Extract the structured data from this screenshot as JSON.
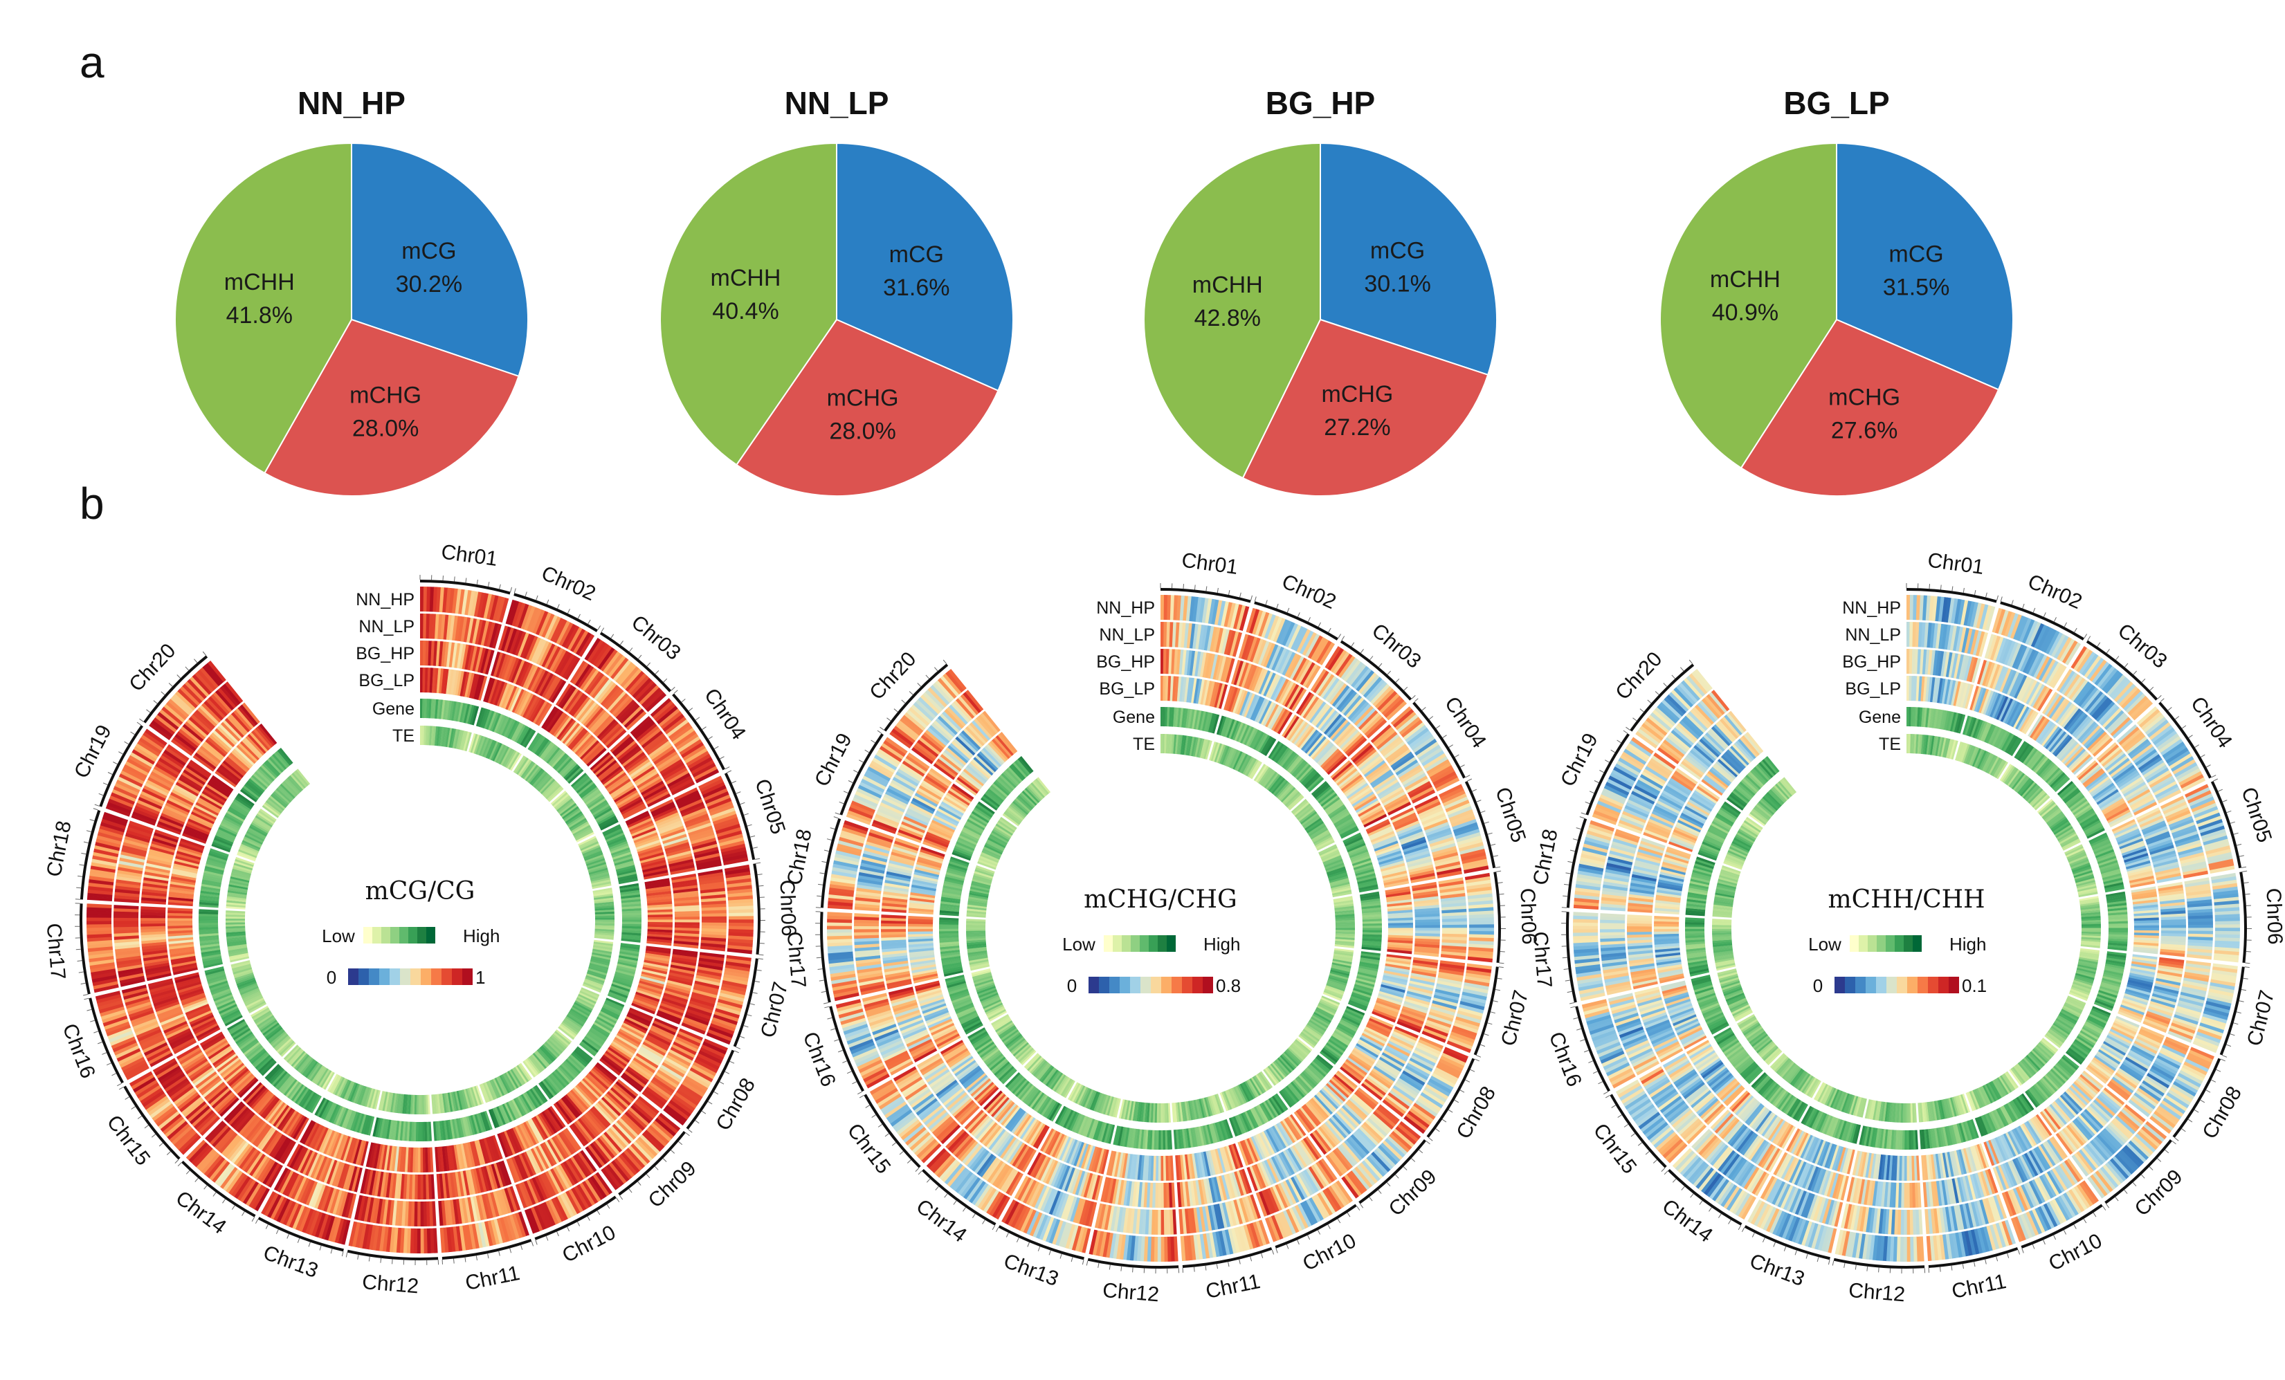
{
  "panels": {
    "a": "a",
    "b": "b"
  },
  "colors": {
    "mCG": "#2a7fc4",
    "mCHG": "#dc5350",
    "mCHH": "#8bbd4e",
    "heat_scale": [
      "#2c3a8e",
      "#2e6fb7",
      "#5ea8d8",
      "#a8d5e8",
      "#f6ecb9",
      "#fdb46b",
      "#f46d3f",
      "#d92f27",
      "#b10f1f"
    ],
    "density_scale": [
      "#ffffcc",
      "#d9f0a3",
      "#addd8e",
      "#78c679",
      "#41ab5d",
      "#238443",
      "#006837"
    ]
  },
  "chart_data": [
    {
      "type": "pie",
      "title": "NN_HP",
      "slices": [
        {
          "label": "mCG",
          "value": 30.2,
          "text": "30.2%"
        },
        {
          "label": "mCHG",
          "value": 28.0,
          "text": "28.0%"
        },
        {
          "label": "mCHH",
          "value": 41.8,
          "text": "41.8%"
        }
      ]
    },
    {
      "type": "pie",
      "title": "NN_LP",
      "slices": [
        {
          "label": "mCG",
          "value": 31.6,
          "text": "31.6%"
        },
        {
          "label": "mCHG",
          "value": 28.0,
          "text": "28.0%"
        },
        {
          "label": "mCHH",
          "value": 40.4,
          "text": "40.4%"
        }
      ]
    },
    {
      "type": "pie",
      "title": "BG_HP",
      "slices": [
        {
          "label": "mCG",
          "value": 30.1,
          "text": "30.1%"
        },
        {
          "label": "mCHG",
          "value": 27.2,
          "text": "27.2%"
        },
        {
          "label": "mCHH",
          "value": 42.8,
          "text": "42.8%"
        }
      ]
    },
    {
      "type": "pie",
      "title": "BG_LP",
      "slices": [
        {
          "label": "mCG",
          "value": 31.5,
          "text": "31.5%"
        },
        {
          "label": "mCHG",
          "value": 27.6,
          "text": "27.6%"
        },
        {
          "label": "mCHH",
          "value": 40.9,
          "text": "40.9%"
        }
      ]
    },
    {
      "type": "heatmap",
      "subtype": "circos",
      "title": "mCG/CG",
      "range": [
        0,
        1
      ],
      "legend": {
        "density_low": "Low",
        "density_high": "High",
        "min": "0",
        "max": "1"
      },
      "chromosomes": [
        "Chr01",
        "Chr02",
        "Chr03",
        "Chr04",
        "Chr05",
        "Chr06",
        "Chr07",
        "Chr08",
        "Chr09",
        "Chr10",
        "Chr11",
        "Chr12",
        "Chr13",
        "Chr14",
        "Chr15",
        "Chr16",
        "Chr17",
        "Chr18",
        "Chr19",
        "Chr20"
      ],
      "tracks": [
        "NN_HP",
        "NN_LP",
        "BG_HP",
        "BG_LP",
        "Gene",
        "TE"
      ],
      "profile_mean": 0.78,
      "profile_amplitude": 0.28
    },
    {
      "type": "heatmap",
      "subtype": "circos",
      "title": "mCHG/CHG",
      "range": [
        0,
        0.8
      ],
      "legend": {
        "density_low": "Low",
        "density_high": "High",
        "min": "0",
        "max": "0.8"
      },
      "chromosomes": [
        "Chr01",
        "Chr02",
        "Chr03",
        "Chr04",
        "Chr05",
        "Chr06",
        "Chr07",
        "Chr08",
        "Chr09",
        "Chr10",
        "Chr11",
        "Chr12",
        "Chr13",
        "Chr14",
        "Chr15",
        "Chr16",
        "Chr17",
        "Chr18",
        "Chr19",
        "Chr20"
      ],
      "tracks": [
        "NN_HP",
        "NN_LP",
        "BG_HP",
        "BG_LP",
        "Gene",
        "TE"
      ],
      "profile_mean": 0.55,
      "profile_amplitude": 0.45
    },
    {
      "type": "heatmap",
      "subtype": "circos",
      "title": "mCHH/CHH",
      "range": [
        0,
        0.1
      ],
      "legend": {
        "density_low": "Low",
        "density_high": "High",
        "min": "0",
        "max": "0.1"
      },
      "chromosomes": [
        "Chr01",
        "Chr02",
        "Chr03",
        "Chr04",
        "Chr05",
        "Chr06",
        "Chr07",
        "Chr08",
        "Chr09",
        "Chr10",
        "Chr11",
        "Chr12",
        "Chr13",
        "Chr14",
        "Chr15",
        "Chr16",
        "Chr17",
        "Chr18",
        "Chr19",
        "Chr20"
      ],
      "tracks": [
        "NN_HP",
        "NN_LP",
        "BG_HP",
        "BG_LP",
        "Gene",
        "TE"
      ],
      "profile_mean": 0.42,
      "profile_amplitude": 0.3
    }
  ]
}
